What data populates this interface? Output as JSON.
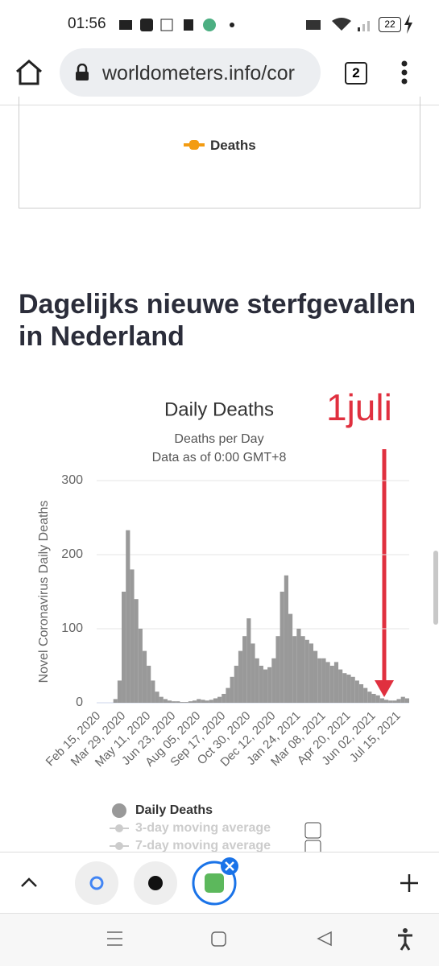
{
  "status_bar": {
    "time": "01:56",
    "battery": "22"
  },
  "browser": {
    "url": "worldometers.info/cor",
    "tab_count": "2"
  },
  "previous_chart": {
    "legend": "Deaths"
  },
  "heading": "Dagelijks nieuwe sterfgevallen in Nederland",
  "chart_data": {
    "type": "bar",
    "title": "Daily Deaths",
    "subtitle": [
      "Deaths per Day",
      "Data as of 0:00 GMT+8"
    ],
    "y_label": "Novel Coronavirus Daily Deaths",
    "annotation": "1juli",
    "ylim": [
      0,
      300
    ],
    "yticks": [
      0,
      100,
      200,
      300
    ],
    "grid": true,
    "categories": [
      "Feb 15, 2020",
      null,
      null,
      null,
      null,
      null,
      "Mar 29, 2020",
      null,
      null,
      null,
      null,
      null,
      "May 11, 2020",
      null,
      null,
      null,
      null,
      null,
      "Jun 23, 2020",
      null,
      null,
      null,
      null,
      null,
      "Aug 05, 2020",
      null,
      null,
      null,
      null,
      null,
      "Sep 17, 2020",
      null,
      null,
      null,
      null,
      null,
      "Oct 30, 2020",
      null,
      null,
      null,
      null,
      null,
      "Dec 12, 2020",
      null,
      null,
      null,
      null,
      null,
      "Jan 24, 2021",
      null,
      null,
      null,
      null,
      null,
      "Mar 08, 2021",
      null,
      null,
      null,
      null,
      null,
      "Apr 20, 2021",
      null,
      null,
      null,
      null,
      null,
      "Jun 02, 2021",
      null,
      null,
      null,
      null,
      null,
      "Jul 15, 2021",
      null,
      null
    ],
    "series": [
      {
        "name": "Daily Deaths",
        "color": "#999999",
        "values": [
          0,
          0,
          0,
          0,
          5,
          30,
          150,
          233,
          180,
          140,
          100,
          70,
          50,
          30,
          15,
          8,
          5,
          3,
          2,
          2,
          1,
          1,
          2,
          3,
          5,
          4,
          3,
          4,
          6,
          8,
          12,
          20,
          35,
          50,
          70,
          90,
          114,
          80,
          60,
          50,
          45,
          48,
          60,
          90,
          150,
          172,
          120,
          90,
          100,
          90,
          85,
          80,
          70,
          60,
          60,
          55,
          50,
          55,
          45,
          40,
          38,
          35,
          30,
          25,
          20,
          15,
          12,
          10,
          6,
          4,
          3,
          3,
          5,
          8,
          6
        ]
      }
    ],
    "hidden_legend": [
      "3-day moving average",
      "7-day moving average"
    ]
  }
}
